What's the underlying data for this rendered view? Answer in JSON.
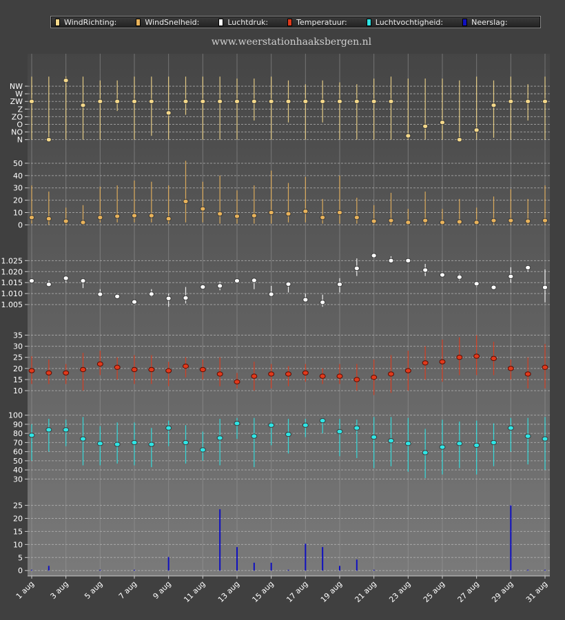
{
  "site_title": "www.weerstationhaaksbergen.nl",
  "legend": [
    {
      "label": "WindRichting:",
      "color": "#f4d88a"
    },
    {
      "label": "WindSnelheid:",
      "color": "#e9b35b"
    },
    {
      "label": "Luchtdruk:",
      "color": "#ffffff"
    },
    {
      "label": "Temperatuur:",
      "color": "#e03a1c"
    },
    {
      "label": "Luchtvochtigheid:",
      "color": "#2ee6e6"
    },
    {
      "label": "Neerslag:",
      "color": "#1010c0"
    }
  ],
  "x_tick_labels": [
    "1 aug",
    "3 aug",
    "5 aug",
    "7 aug",
    "9 aug",
    "11 aug",
    "13 aug",
    "15 aug",
    "17 aug",
    "19 aug",
    "21 aug",
    "23 aug",
    "25 aug",
    "27 aug",
    "29 aug",
    "31 aug"
  ],
  "chart_data": {
    "type": "scatter",
    "x_days": [
      1,
      2,
      3,
      4,
      5,
      6,
      7,
      8,
      9,
      10,
      11,
      12,
      13,
      14,
      15,
      16,
      17,
      18,
      19,
      20,
      21,
      22,
      23,
      24,
      25,
      26,
      27,
      28,
      29,
      30,
      31
    ],
    "panels": [
      {
        "name": "wind_direction",
        "series_label": "WindRichting:",
        "kind": "range-dot",
        "ytick_labels": [
          "N",
          "NO",
          "O",
          "ZO",
          "Z",
          "ZW",
          "W",
          "NW"
        ],
        "ylim": [
          -0.3,
          8.9
        ],
        "color": "#f4d88a",
        "values": [
          5.0,
          0.0,
          7.75,
          4.5,
          5.0,
          5.0,
          5.0,
          5.0,
          3.5,
          5.0,
          5.0,
          5.0,
          5.0,
          5.0,
          5.0,
          5.0,
          5.0,
          5.0,
          5.0,
          5.0,
          5.0,
          5.0,
          0.5,
          1.75,
          2.25,
          0.0,
          1.25,
          4.5,
          5.0,
          5.0,
          5.0
        ],
        "low": [
          0,
          0,
          0,
          0,
          0,
          3.75,
          0,
          0.5,
          0,
          3.25,
          0,
          0,
          0,
          2.5,
          0,
          2.25,
          0,
          2.25,
          0,
          0,
          0,
          0,
          0,
          0,
          0,
          0,
          0,
          0.25,
          0,
          2.5,
          0
        ],
        "high": [
          8.25,
          8.25,
          8.25,
          8.25,
          7.75,
          7.75,
          8.25,
          8.25,
          8.25,
          8.25,
          8.25,
          8.25,
          8.0,
          8.0,
          8.25,
          7.75,
          7.25,
          7.75,
          7.5,
          7.25,
          8.0,
          8.25,
          8.0,
          8.0,
          8.0,
          7.75,
          8.25,
          7.75,
          8.25,
          7.25,
          8.25
        ]
      },
      {
        "name": "wind_speed",
        "series_label": "WindSnelheid:",
        "kind": "range-dot",
        "yticks": [
          0,
          10,
          20,
          30,
          40,
          50
        ],
        "ylim": [
          -2,
          55
        ],
        "color": "#e9b35b",
        "values": [
          6,
          5,
          3,
          2,
          6,
          7,
          7.5,
          7.5,
          5,
          19,
          13,
          9,
          7,
          7.5,
          10,
          9,
          11,
          6,
          10,
          6,
          3,
          3.5,
          2,
          3.5,
          2,
          2.5,
          2,
          3.5,
          3.5,
          3,
          3.5
        ],
        "low": [
          1,
          0,
          0,
          0,
          2,
          2,
          2,
          2,
          1,
          2,
          2,
          1,
          1,
          1,
          1,
          2,
          2,
          1,
          1,
          1,
          0,
          0,
          0,
          0,
          0,
          0,
          0,
          0,
          0,
          0,
          0
        ],
        "high": [
          32,
          27,
          14,
          16,
          31,
          32,
          36,
          35,
          32,
          52,
          35,
          40,
          28,
          32,
          44,
          34,
          39,
          21,
          40,
          22,
          16,
          26,
          13,
          27,
          13,
          21,
          14,
          23,
          29,
          21,
          32
        ]
      },
      {
        "name": "pressure",
        "series_label": "Luchtdruk:",
        "kind": "range-dot",
        "yticks": [
          1.005,
          1.01,
          1.015,
          1.02,
          1.025
        ],
        "ylim": [
          1.0,
          1.032
        ],
        "color": "#ffffff",
        "values": [
          1.0158,
          1.0142,
          1.017,
          1.0158,
          1.0097,
          1.0087,
          1.0062,
          1.0098,
          1.0078,
          1.008,
          1.013,
          1.0135,
          1.0158,
          1.016,
          1.0097,
          1.0143,
          1.0072,
          1.006,
          1.0142,
          1.0215,
          1.0273,
          1.025,
          1.025,
          1.0207,
          1.0185,
          1.0175,
          1.0145,
          1.0128,
          1.0178,
          1.0218,
          1.0128
        ],
        "low": [
          1.015,
          1.0135,
          1.015,
          1.0125,
          1.0085,
          1.008,
          1.0055,
          1.0085,
          1.004,
          1.0055,
          1.0125,
          1.0115,
          1.0155,
          1.012,
          1.0085,
          1.0105,
          1.0065,
          1.004,
          1.0105,
          1.018,
          1.026,
          1.024,
          1.024,
          1.018,
          1.018,
          1.016,
          1.013,
          1.0125,
          1.015,
          1.02,
          1.006
        ],
        "high": [
          1.0165,
          1.016,
          1.0175,
          1.017,
          1.012,
          1.0095,
          1.007,
          1.012,
          1.01,
          1.013,
          1.014,
          1.0155,
          1.0165,
          1.0165,
          1.0135,
          1.0155,
          1.01,
          1.0095,
          1.017,
          1.026,
          1.028,
          1.027,
          1.0255,
          1.0235,
          1.0195,
          1.019,
          1.0155,
          1.014,
          1.022,
          1.023,
          1.021
        ]
      },
      {
        "name": "temperature",
        "series_label": "Temperatuur:",
        "kind": "range-dot",
        "yticks": [
          10,
          15,
          20,
          25,
          30,
          35
        ],
        "ylim": [
          6,
          37
        ],
        "color": "#e03a1c",
        "values": [
          19,
          18,
          18,
          19.5,
          22,
          20.5,
          19.5,
          19.5,
          19,
          21,
          19.5,
          17.5,
          14,
          16.5,
          17.5,
          17.5,
          18,
          16.5,
          16.5,
          15,
          16,
          17.5,
          19,
          22.5,
          23,
          25,
          25.5,
          24.5,
          20,
          17.5,
          20.5
        ],
        "low": [
          13,
          13,
          13,
          10,
          17,
          15,
          13,
          13,
          12,
          16,
          15,
          12,
          11,
          10,
          11,
          12,
          14,
          13,
          13,
          10,
          8,
          9,
          10,
          15,
          14,
          17,
          17,
          17,
          15,
          11,
          11
        ],
        "high": [
          25.5,
          24,
          22,
          27,
          28,
          25,
          26,
          26,
          23,
          25,
          24,
          25,
          18,
          23,
          22,
          21,
          22,
          20,
          22,
          22,
          24,
          26,
          28,
          30,
          33,
          34,
          35,
          32,
          24,
          25,
          31
        ]
      },
      {
        "name": "humidity",
        "series_label": "Luchtvochtigheid:",
        "kind": "range-dot",
        "yticks": [
          30,
          40,
          50,
          60,
          70,
          80,
          90,
          100
        ],
        "ylim": [
          25,
          102
        ],
        "color": "#2ee6e6",
        "values": [
          78,
          84,
          84,
          74,
          69,
          68,
          70,
          68,
          86,
          70,
          62,
          75,
          91,
          77,
          89,
          79,
          89,
          94,
          82,
          86,
          76,
          72,
          69,
          59,
          65,
          69,
          67,
          70,
          86,
          77,
          74
        ],
        "low": [
          50,
          60,
          66,
          45,
          45,
          47,
          45,
          43,
          66,
          47,
          50,
          45,
          74,
          43,
          67,
          58,
          76,
          80,
          55,
          53,
          42,
          44,
          38,
          31,
          35,
          42,
          35,
          44,
          60,
          46,
          40
        ],
        "high": [
          90,
          96,
          95,
          98,
          88,
          92,
          92,
          86,
          94,
          89,
          82,
          96,
          97,
          97,
          93,
          96,
          96,
          97,
          96,
          95,
          98,
          98,
          97,
          85,
          95,
          93,
          94,
          91,
          97,
          97,
          98
        ]
      },
      {
        "name": "precipitation",
        "series_label": "Neerslag:",
        "kind": "bar",
        "yticks": [
          0,
          5,
          10,
          15,
          20,
          25
        ],
        "ylim": [
          -1,
          27
        ],
        "color": "#1010c0",
        "values": [
          0.3,
          1.8,
          0,
          0,
          0.3,
          0,
          0.3,
          0,
          5.2,
          0,
          0,
          23.5,
          9,
          3,
          3,
          0.3,
          10.3,
          9,
          1.8,
          4.2,
          0.3,
          0,
          0,
          0,
          0,
          0,
          0,
          0,
          25,
          0.3,
          0.3
        ]
      }
    ]
  }
}
